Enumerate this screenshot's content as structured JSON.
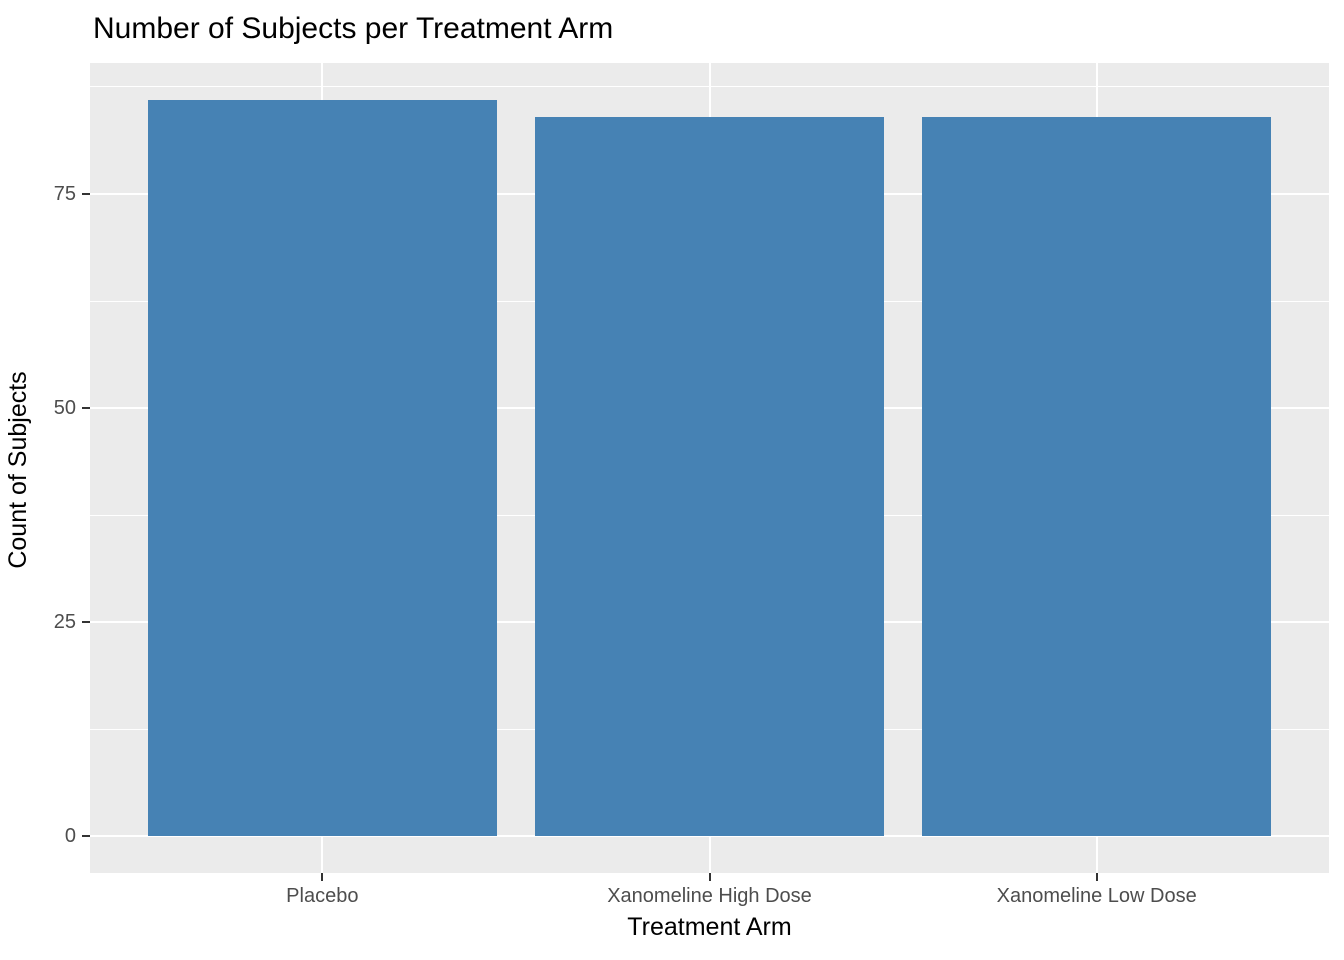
{
  "title": "Number of Subjects per Treatment Arm",
  "chart_data": {
    "type": "bar",
    "title": "Number of Subjects per Treatment Arm",
    "categories": [
      "Placebo",
      "Xanomeline High Dose",
      "Xanomeline Low Dose"
    ],
    "values": [
      86,
      84,
      84
    ],
    "xlabel": "Treatment Arm",
    "ylabel": "Count of Subjects",
    "yticks": [
      0,
      25,
      50,
      75
    ],
    "ylim": [
      -4.3,
      90.3
    ],
    "grid": true,
    "legend_position": "none",
    "style": "ggplot2-theme-grey",
    "colors": {
      "bar": "#4682B4",
      "panel_background": "#EBEBEB",
      "gridline": "#FFFFFF",
      "tick_mark": "#333333",
      "tick_label": "#4D4D4D",
      "axis_title": "#000000",
      "plot_title": "#000000",
      "page_background": "#FFFFFF"
    }
  }
}
